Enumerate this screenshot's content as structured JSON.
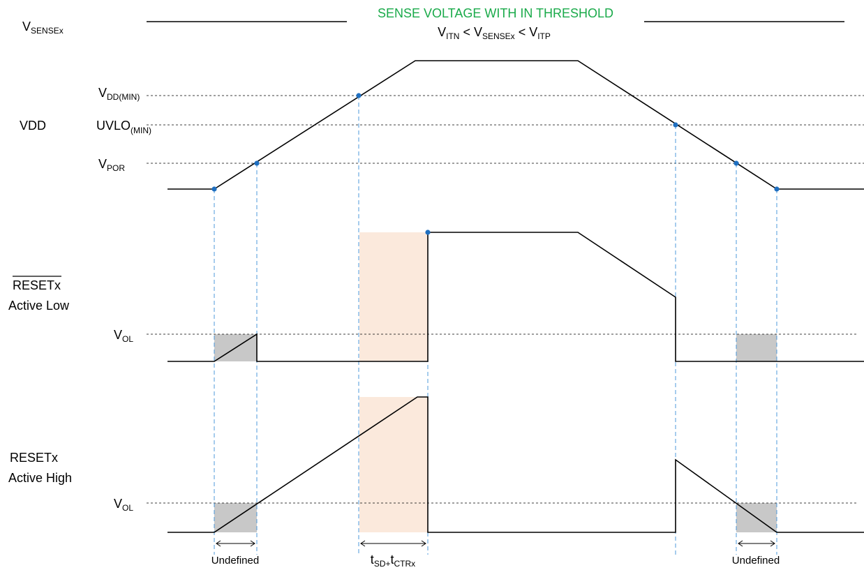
{
  "vsense": {
    "label_main": "V",
    "label_sub": "SENSEx",
    "banner": "SENSE VOLTAGE WITH IN THRESHOLD",
    "cond_v1": "V",
    "cond_s1": "ITN",
    "cond_op1": " < V",
    "cond_s2": "SENSEx",
    "cond_op2": " < V",
    "cond_s3": "ITP"
  },
  "vdd": {
    "label": "VDD",
    "vddmin_main": "V",
    "vddmin_sub": "DD(MIN)",
    "uvlo_main": "UVLO",
    "uvlo_sub": "(MIN)",
    "vpor_main": "V",
    "vpor_sub": "POR"
  },
  "reset_low": {
    "label_line1": "RESETx",
    "label_line2": "Active Low",
    "vol_main": "V",
    "vol_sub": "OL"
  },
  "reset_high": {
    "label_line1": "RESETx",
    "label_line2": "Active High",
    "vol_main": "V",
    "vol_sub": "OL"
  },
  "timing": {
    "undefined_left": "Undefined",
    "undefined_right": "Undefined",
    "delay_t1": "t",
    "delay_s1": "SD+",
    "delay_t2": "t",
    "delay_s2": "CTRx"
  },
  "colors": {
    "title": "#1aaa4a",
    "guide": "#3a8fd8",
    "dot": "#1f6fc0",
    "undefined_fill": "#c8c8c8",
    "delay_fill": "#fbe9dc"
  }
}
